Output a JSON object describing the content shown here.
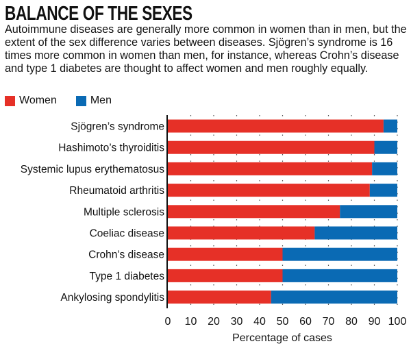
{
  "chart_data": {
    "type": "bar",
    "orientation": "horizontal",
    "stacked": true,
    "title": "BALANCE OF THE SEXES",
    "subtitle": "Autoimmune diseases are generally more common in women than in men, but the extent of the sex difference varies between diseases. Sjögren’s syndrome is 16 times more common in women than men, for instance, whereas Crohn’s disease and type 1 diabetes are thought to affect women and men roughly equally.",
    "categories": [
      "Sjögren’s syndrome",
      "Hashimoto’s thyroiditis",
      "Systemic lupus erythematosus",
      "Rheumatoid arthritis",
      "Multiple sclerosis",
      "Coeliac disease",
      "Crohn’s disease",
      "Type 1 diabetes",
      "Ankylosing spondylitis"
    ],
    "series": [
      {
        "name": "Women",
        "color": "#e63027",
        "values": [
          94,
          90,
          89,
          88,
          75,
          64,
          50,
          50,
          45
        ]
      },
      {
        "name": "Men",
        "color": "#0a6ab4",
        "values": [
          6,
          10,
          11,
          12,
          25,
          36,
          50,
          50,
          55
        ]
      }
    ],
    "xlabel": "Percentage of cases",
    "ylabel": "",
    "xlim": [
      0,
      100
    ],
    "xticks": [
      "0",
      "10",
      "20",
      "30",
      "40",
      "50",
      "60",
      "70",
      "80",
      "90",
      "100"
    ],
    "grid": "vertical dotted",
    "legend": "top-left"
  }
}
